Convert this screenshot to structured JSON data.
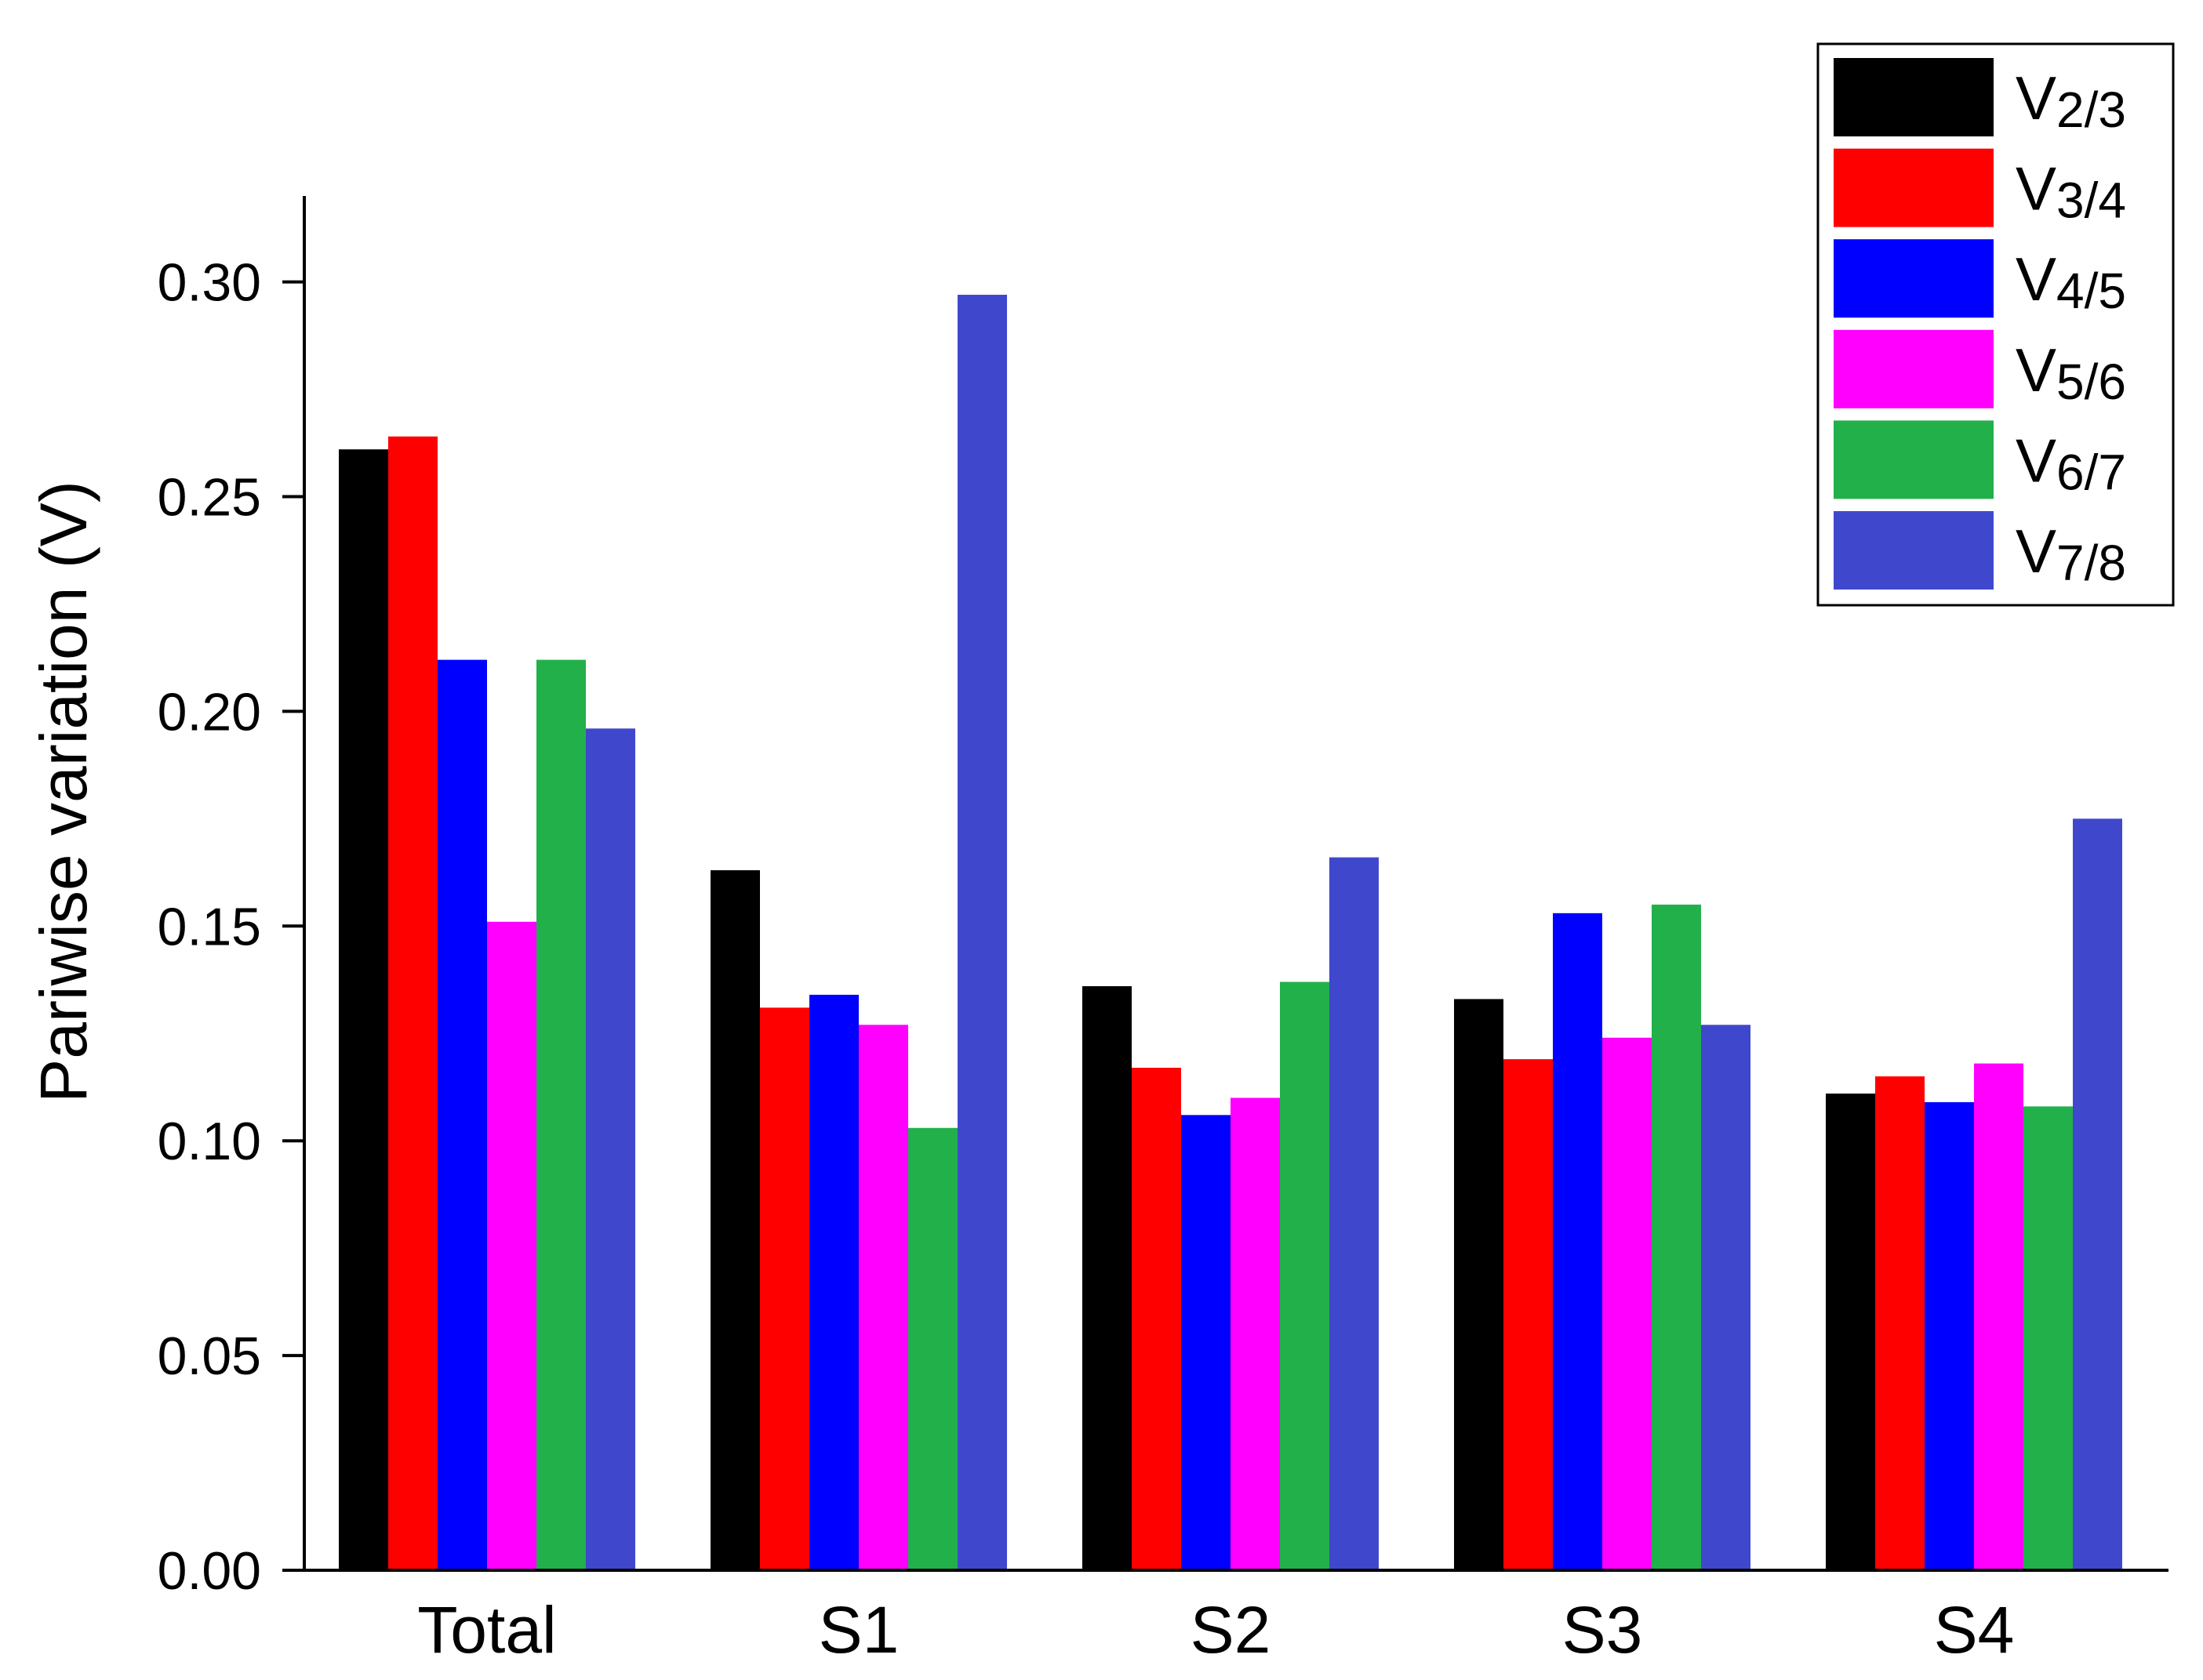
{
  "chart_data": {
    "type": "bar",
    "title": "",
    "xlabel": "",
    "ylabel": "Pariwise variation (V)",
    "ylim": [
      0,
      0.32
    ],
    "yticks": [
      "0.00",
      "0.05",
      "0.10",
      "0.15",
      "0.20",
      "0.25",
      "0.30"
    ],
    "categories": [
      "Total",
      "S1",
      "S2",
      "S3",
      "S4"
    ],
    "legend_position": "top-right",
    "grid": false,
    "series": [
      {
        "name": "V",
        "name_sub": "2/3",
        "color": "#000000",
        "values": [
          0.261,
          0.163,
          0.136,
          0.133,
          0.111
        ]
      },
      {
        "name": "V",
        "name_sub": "3/4",
        "color": "#ff0000",
        "values": [
          0.264,
          0.131,
          0.117,
          0.119,
          0.115
        ]
      },
      {
        "name": "V",
        "name_sub": "4/5",
        "color": "#0000ff",
        "values": [
          0.212,
          0.134,
          0.106,
          0.153,
          0.109
        ]
      },
      {
        "name": "V",
        "name_sub": "5/6",
        "color": "#ff00ff",
        "values": [
          0.151,
          0.127,
          0.11,
          0.124,
          0.118
        ]
      },
      {
        "name": "V",
        "name_sub": "6/7",
        "color": "#22b04b",
        "values": [
          0.212,
          0.103,
          0.137,
          0.155,
          0.108
        ]
      },
      {
        "name": "V",
        "name_sub": "7/8",
        "color": "#3f48cc",
        "values": [
          0.196,
          0.297,
          0.166,
          0.127,
          0.175
        ]
      }
    ]
  }
}
